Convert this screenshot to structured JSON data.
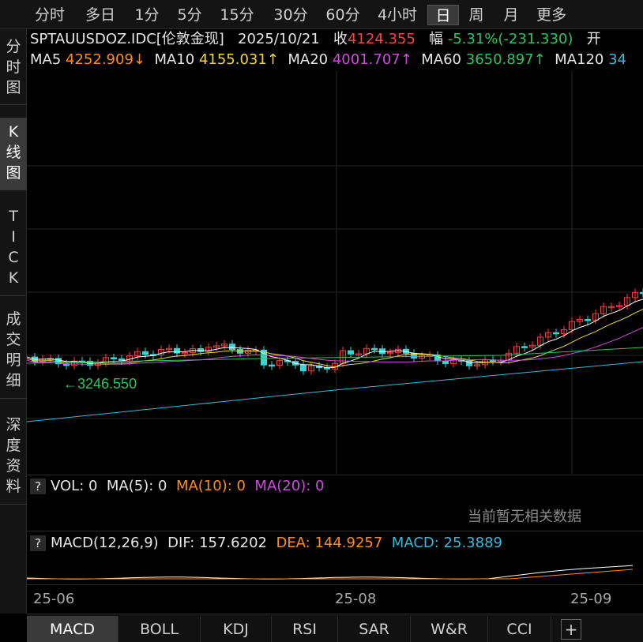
{
  "periods": [
    "分时",
    "多日",
    "1分",
    "5分",
    "15分",
    "30分",
    "60分",
    "4小时",
    "日",
    "周",
    "月",
    "更多"
  ],
  "active_period": "日",
  "side_tabs": [
    "分\n时\n图",
    "K\n线\n图",
    "T\nI\nC\nK",
    "成\n交\n明\n细",
    "深\n度\n资\n料"
  ],
  "quote": {
    "symbol": "SPTAUUSDOZ.IDC[伦敦金现]",
    "date": "2025/10/21",
    "close_label": "收",
    "close": "4124.355",
    "change_label": "幅",
    "change": "-5.31%(-231.330)",
    "open_label": "开"
  },
  "ma": {
    "ma5_label": "MA5",
    "ma5": "4252.909↓",
    "ma10_label": "MA10",
    "ma10": "4155.031↑",
    "ma20_label": "MA20",
    "ma20": "4001.707↑",
    "ma60_label": "MA60",
    "ma60": "3650.897↑",
    "ma120_label": "MA120",
    "ma120": "34"
  },
  "low_marker": "←3246.550",
  "vol": {
    "help": "?",
    "text": "VOL: 0",
    "ma5": "MA(5): 0",
    "ma10": "MA(10): 0",
    "ma20": "MA(20): 0",
    "no_data": "当前暂无相关数据"
  },
  "macd": {
    "help": "?",
    "name": "MACD(12,26,9)",
    "dif": "DIF: 157.6202",
    "dea": "DEA: 144.9257",
    "macd": "MACD: 25.3889"
  },
  "x_labels": [
    "25-06",
    "25-08",
    "25-09"
  ],
  "indicator_tabs": [
    "MACD",
    "BOLL",
    "KDJ",
    "RSI",
    "SAR",
    "W&R",
    "CCI"
  ],
  "active_indicator": "MACD",
  "add_button": "+",
  "colors": {
    "up": "#ff3a3a",
    "down": "#3ad4d4",
    "ma5": "#ffffff",
    "ma10": "#f0d83a",
    "ma20": "#d04adf",
    "ma60": "#2ec35f",
    "ma120": "#3ab8d8"
  }
}
